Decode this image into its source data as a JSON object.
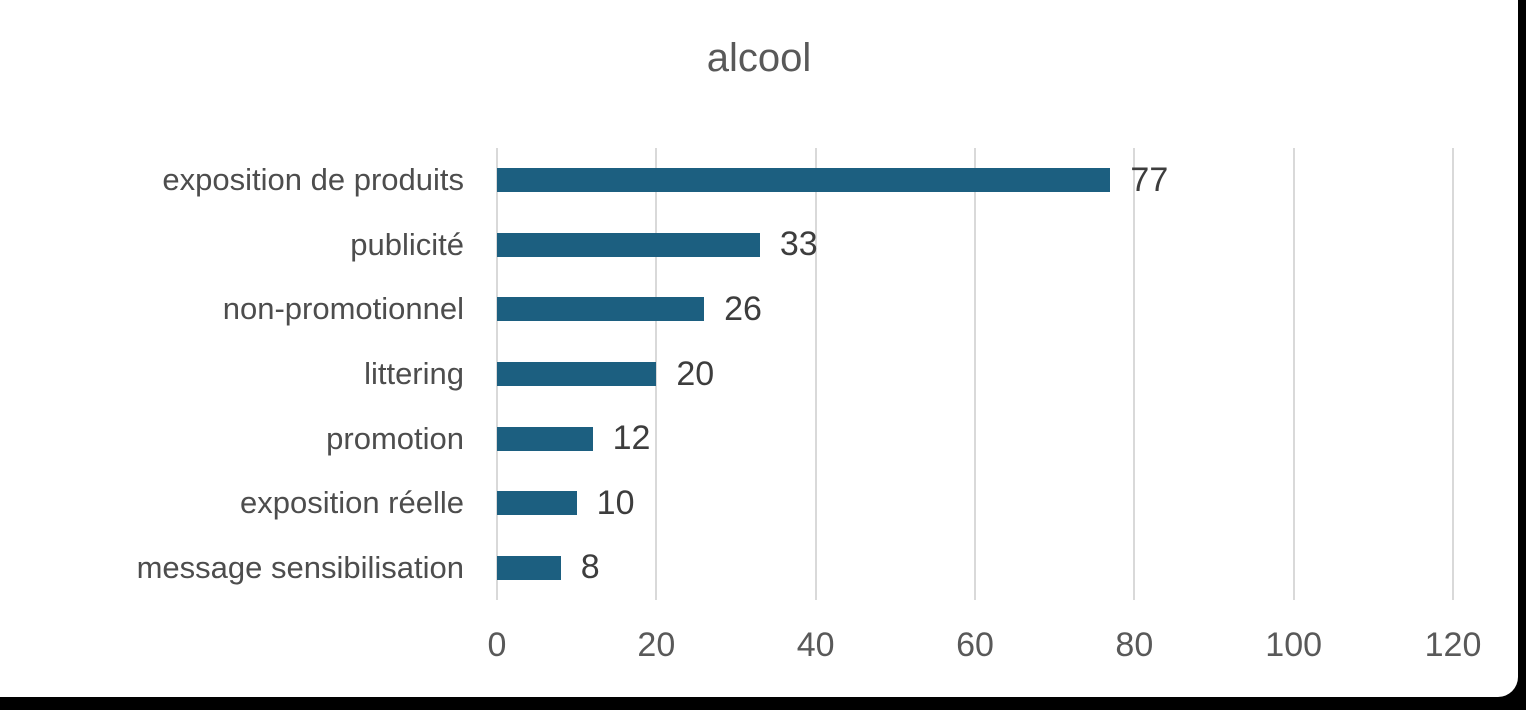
{
  "chart_data": {
    "type": "bar",
    "orientation": "horizontal",
    "title": "alcool",
    "categories": [
      "exposition de produits",
      "publicité",
      "non-promotionnel",
      "littering",
      "promotion",
      "exposition réelle",
      "message sensibilisation"
    ],
    "values": [
      77,
      33,
      26,
      20,
      12,
      10,
      8
    ],
    "data_labels": [
      77,
      33,
      26,
      20,
      12,
      10,
      8
    ],
    "xlabel": "",
    "ylabel": "",
    "xlim": [
      0,
      120
    ],
    "x_ticks": [
      0,
      20,
      40,
      60,
      80,
      100,
      120
    ],
    "grid": "vertical-gridlines-on",
    "legend": "none"
  },
  "colors": {
    "bar": "#1c5f80",
    "gridline": "#d9d9d9",
    "title_text": "#595959",
    "category_text": "#4d4d4d",
    "value_text": "#3d3d3d",
    "tick_text": "#595959",
    "background": "#ffffff",
    "frame_border": "#000000"
  }
}
